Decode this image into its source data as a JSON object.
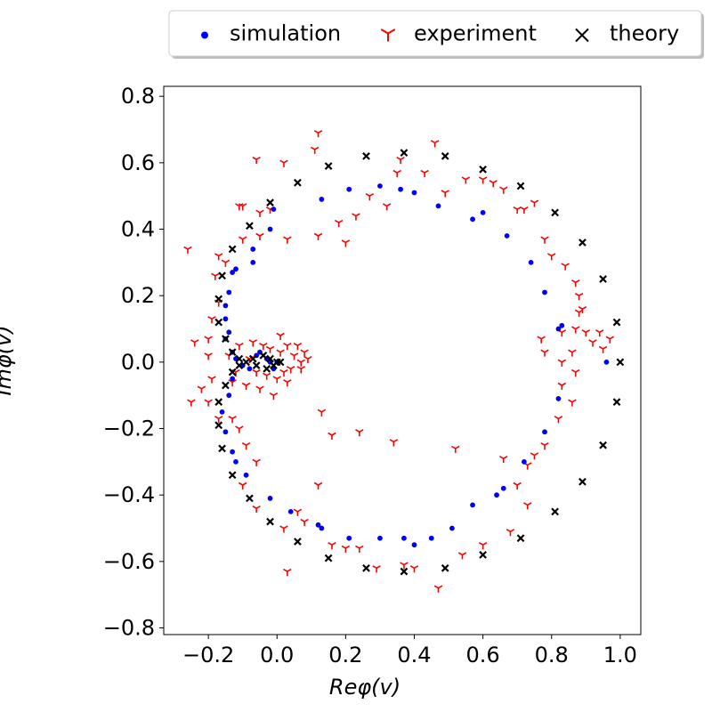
{
  "chart_data": {
    "type": "scatter",
    "title": "",
    "xlabel": "Reφ(v)",
    "ylabel": "Imφ(v)",
    "xlim": [
      -0.33,
      1.06
    ],
    "ylim": [
      -0.82,
      0.83
    ],
    "x_ticks": [
      -0.2,
      0.0,
      0.2,
      0.4,
      0.6,
      0.8,
      1.0
    ],
    "x_tick_labels": [
      "−0.2",
      "0.0",
      "0.2",
      "0.4",
      "0.6",
      "0.8",
      "1.0"
    ],
    "y_ticks": [
      -0.8,
      -0.6,
      -0.4,
      -0.2,
      0.0,
      0.2,
      0.4,
      0.6,
      0.8
    ],
    "y_tick_labels": [
      "−0.8",
      "−0.6",
      "−0.4",
      "−0.2",
      "0.0",
      "0.2",
      "0.4",
      "0.6",
      "0.8"
    ],
    "grid": false,
    "legend": {
      "placement": "top-right, above plot",
      "ncol": 3
    },
    "series": [
      {
        "name": "simulation",
        "marker": "dot",
        "color": "#0000ff",
        "points": [
          [
            0.21,
            0.52
          ],
          [
            0.3,
            0.53
          ],
          [
            0.36,
            0.52
          ],
          [
            0.4,
            0.51
          ],
          [
            0.47,
            0.47
          ],
          [
            0.57,
            0.43
          ],
          [
            0.6,
            0.45
          ],
          [
            0.67,
            0.38
          ],
          [
            0.74,
            0.3
          ],
          [
            0.78,
            0.21
          ],
          [
            0.82,
            0.1
          ],
          [
            0.83,
            0.11
          ],
          [
            0.96,
            0.0
          ],
          [
            0.13,
            0.49
          ],
          [
            -0.01,
            0.46
          ],
          [
            -0.02,
            0.4
          ],
          [
            -0.07,
            0.34
          ],
          [
            -0.07,
            0.3
          ],
          [
            -0.12,
            0.28
          ],
          [
            -0.13,
            0.27
          ],
          [
            -0.14,
            0.21
          ],
          [
            -0.15,
            0.17
          ],
          [
            -0.15,
            0.13
          ],
          [
            -0.14,
            0.09
          ],
          [
            -0.15,
            0.07
          ],
          [
            -0.13,
            0.03
          ],
          [
            -0.12,
            0.01
          ],
          [
            -0.1,
            -0.01
          ],
          [
            -0.13,
            -0.05
          ],
          [
            -0.14,
            -0.1
          ],
          [
            -0.16,
            -0.15
          ],
          [
            -0.15,
            -0.21
          ],
          [
            -0.13,
            -0.27
          ],
          [
            -0.12,
            -0.3
          ],
          [
            -0.09,
            -0.34
          ],
          [
            -0.02,
            -0.41
          ],
          [
            0.04,
            -0.45
          ],
          [
            0.12,
            -0.49
          ],
          [
            0.13,
            -0.5
          ],
          [
            0.21,
            -0.53
          ],
          [
            0.3,
            -0.53
          ],
          [
            0.37,
            -0.53
          ],
          [
            0.4,
            -0.55
          ],
          [
            0.45,
            -0.53
          ],
          [
            0.51,
            -0.5
          ],
          [
            0.57,
            -0.43
          ],
          [
            0.64,
            -0.4
          ],
          [
            0.66,
            -0.38
          ],
          [
            0.72,
            -0.3
          ],
          [
            0.78,
            -0.21
          ],
          [
            0.82,
            -0.11
          ],
          [
            -0.05,
            0.03
          ],
          [
            -0.03,
            0.01
          ],
          [
            -0.02,
            0.0
          ],
          [
            0.0,
            0.0
          ],
          [
            -0.08,
            -0.02
          ],
          [
            -0.06,
            0.02
          ],
          [
            -0.01,
            -0.02
          ]
        ]
      },
      {
        "name": "experiment",
        "marker": "tri_down",
        "color": "#ff0000",
        "points": [
          [
            0.12,
            0.69
          ],
          [
            0.11,
            0.64
          ],
          [
            0.46,
            0.66
          ],
          [
            0.36,
            0.61
          ],
          [
            -0.06,
            0.61
          ],
          [
            0.02,
            0.6
          ],
          [
            0.35,
            0.57
          ],
          [
            0.43,
            0.57
          ],
          [
            0.49,
            0.51
          ],
          [
            0.6,
            0.55
          ],
          [
            0.63,
            0.54
          ],
          [
            0.55,
            0.55
          ],
          [
            0.66,
            0.52
          ],
          [
            0.7,
            0.46
          ],
          [
            0.75,
            0.48
          ],
          [
            0.72,
            0.46
          ],
          [
            0.78,
            0.37
          ],
          [
            0.8,
            0.32
          ],
          [
            0.84,
            0.29
          ],
          [
            0.87,
            0.24
          ],
          [
            0.88,
            0.2
          ],
          [
            0.89,
            0.16
          ],
          [
            0.87,
            0.1
          ],
          [
            0.83,
            0.09
          ],
          [
            0.77,
            0.07
          ],
          [
            0.78,
            0.03
          ],
          [
            0.83,
            0.0
          ],
          [
            0.86,
            0.03
          ],
          [
            0.87,
            -0.03
          ],
          [
            0.83,
            -0.07
          ],
          [
            0.86,
            -0.12
          ],
          [
            0.82,
            -0.17
          ],
          [
            0.78,
            -0.25
          ],
          [
            0.75,
            -0.28
          ],
          [
            0.73,
            -0.31
          ],
          [
            0.7,
            -0.37
          ],
          [
            0.73,
            -0.43
          ],
          [
            0.68,
            -0.51
          ],
          [
            0.6,
            -0.55
          ],
          [
            0.54,
            -0.58
          ],
          [
            0.47,
            -0.68
          ],
          [
            0.4,
            -0.62
          ],
          [
            0.37,
            -0.61
          ],
          [
            0.29,
            -0.62
          ],
          [
            0.24,
            -0.56
          ],
          [
            0.2,
            -0.56
          ],
          [
            0.16,
            -0.55
          ],
          [
            0.12,
            -0.37
          ],
          [
            0.06,
            -0.45
          ],
          [
            0.03,
            -0.63
          ],
          [
            0.08,
            -0.48
          ],
          [
            0.02,
            -0.5
          ],
          [
            -0.06,
            -0.44
          ],
          [
            -0.1,
            -0.37
          ],
          [
            -0.06,
            -0.3
          ],
          [
            -0.09,
            -0.25
          ],
          [
            -0.11,
            -0.2
          ],
          [
            -0.13,
            -0.17
          ],
          [
            -0.17,
            -0.17
          ],
          [
            -0.2,
            -0.12
          ],
          [
            -0.19,
            -0.05
          ],
          [
            -0.2,
            0.02
          ],
          [
            -0.2,
            0.07
          ],
          [
            -0.19,
            0.13
          ],
          [
            -0.17,
            0.18
          ],
          [
            -0.18,
            0.26
          ],
          [
            -0.15,
            0.3
          ],
          [
            -0.17,
            0.32
          ],
          [
            -0.1,
            0.37
          ],
          [
            -0.05,
            0.38
          ],
          [
            -0.05,
            0.45
          ],
          [
            -0.11,
            0.47
          ],
          [
            -0.1,
            0.47
          ],
          [
            -0.02,
            0.46
          ],
          [
            0.03,
            0.37
          ],
          [
            0.12,
            0.38
          ],
          [
            0.18,
            0.42
          ],
          [
            0.2,
            0.36
          ],
          [
            0.23,
            0.44
          ],
          [
            0.27,
            0.5
          ],
          [
            0.32,
            0.47
          ],
          [
            -0.26,
            0.34
          ],
          [
            -0.24,
            0.06
          ],
          [
            -0.25,
            -0.12
          ],
          [
            -0.22,
            -0.08
          ],
          [
            0.13,
            -0.15
          ],
          [
            0.16,
            -0.22
          ],
          [
            0.24,
            -0.21
          ],
          [
            0.34,
            -0.24
          ],
          [
            0.52,
            -0.26
          ],
          [
            0.66,
            -0.29
          ],
          [
            0.9,
            0.09
          ],
          [
            0.88,
            0.15
          ],
          [
            0.95,
            0.04
          ],
          [
            0.97,
            0.07
          ],
          [
            0.92,
            0.06
          ],
          [
            0.94,
            0.09
          ],
          [
            -0.08,
            0.01
          ],
          [
            -0.06,
            -0.03
          ],
          [
            -0.04,
            0.05
          ],
          [
            -0.03,
            -0.04
          ],
          [
            -0.02,
            0.04
          ],
          [
            0.0,
            -0.05
          ],
          [
            0.01,
            0.03
          ],
          [
            0.02,
            -0.03
          ],
          [
            0.03,
            0.05
          ],
          [
            0.04,
            -0.02
          ],
          [
            0.05,
            0.02
          ],
          [
            0.07,
            0.0
          ],
          [
            0.08,
            0.03
          ],
          [
            -0.11,
            0.05
          ],
          [
            -0.12,
            -0.03
          ],
          [
            -0.09,
            -0.07
          ],
          [
            -0.07,
            0.06
          ],
          [
            -0.05,
            -0.08
          ],
          [
            -0.01,
            -0.1
          ],
          [
            0.01,
            0.08
          ],
          [
            0.03,
            -0.06
          ],
          [
            0.06,
            0.05
          ],
          [
            0.07,
            -0.02
          ],
          [
            0.09,
            0.01
          ],
          [
            -0.14,
            0.02
          ],
          [
            -0.13,
            -0.06
          ]
        ]
      },
      {
        "name": "theory",
        "marker": "x",
        "color": "#000000",
        "points": [
          [
            1.0,
            0.0
          ],
          [
            0.99,
            0.12
          ],
          [
            0.99,
            -0.12
          ],
          [
            0.95,
            0.25
          ],
          [
            0.95,
            -0.25
          ],
          [
            0.89,
            0.36
          ],
          [
            0.89,
            -0.36
          ],
          [
            0.81,
            0.45
          ],
          [
            0.81,
            -0.45
          ],
          [
            0.71,
            0.53
          ],
          [
            0.71,
            -0.53
          ],
          [
            0.6,
            0.58
          ],
          [
            0.6,
            -0.58
          ],
          [
            0.49,
            0.62
          ],
          [
            0.49,
            -0.62
          ],
          [
            0.37,
            0.63
          ],
          [
            0.37,
            -0.63
          ],
          [
            0.26,
            0.62
          ],
          [
            0.26,
            -0.62
          ],
          [
            0.15,
            0.59
          ],
          [
            0.15,
            -0.59
          ],
          [
            0.06,
            0.54
          ],
          [
            0.06,
            -0.54
          ],
          [
            -0.02,
            0.48
          ],
          [
            -0.02,
            -0.48
          ],
          [
            -0.08,
            0.41
          ],
          [
            -0.08,
            -0.41
          ],
          [
            -0.13,
            0.34
          ],
          [
            -0.13,
            -0.34
          ],
          [
            -0.16,
            0.26
          ],
          [
            -0.16,
            -0.26
          ],
          [
            -0.17,
            0.19
          ],
          [
            -0.17,
            -0.19
          ],
          [
            -0.17,
            0.12
          ],
          [
            -0.17,
            -0.12
          ],
          [
            -0.15,
            0.07
          ],
          [
            -0.15,
            -0.07
          ],
          [
            -0.13,
            0.03
          ],
          [
            -0.13,
            -0.03
          ],
          [
            -0.11,
            0.01
          ],
          [
            -0.11,
            -0.01
          ],
          [
            -0.09,
            0.0
          ],
          [
            -0.07,
            0.01
          ],
          [
            -0.06,
            -0.01
          ],
          [
            -0.04,
            0.02
          ],
          [
            -0.03,
            -0.02
          ],
          [
            -0.02,
            0.01
          ],
          [
            -0.01,
            -0.01
          ],
          [
            0.0,
            0.0
          ],
          [
            0.01,
            0.0
          ]
        ]
      }
    ]
  }
}
